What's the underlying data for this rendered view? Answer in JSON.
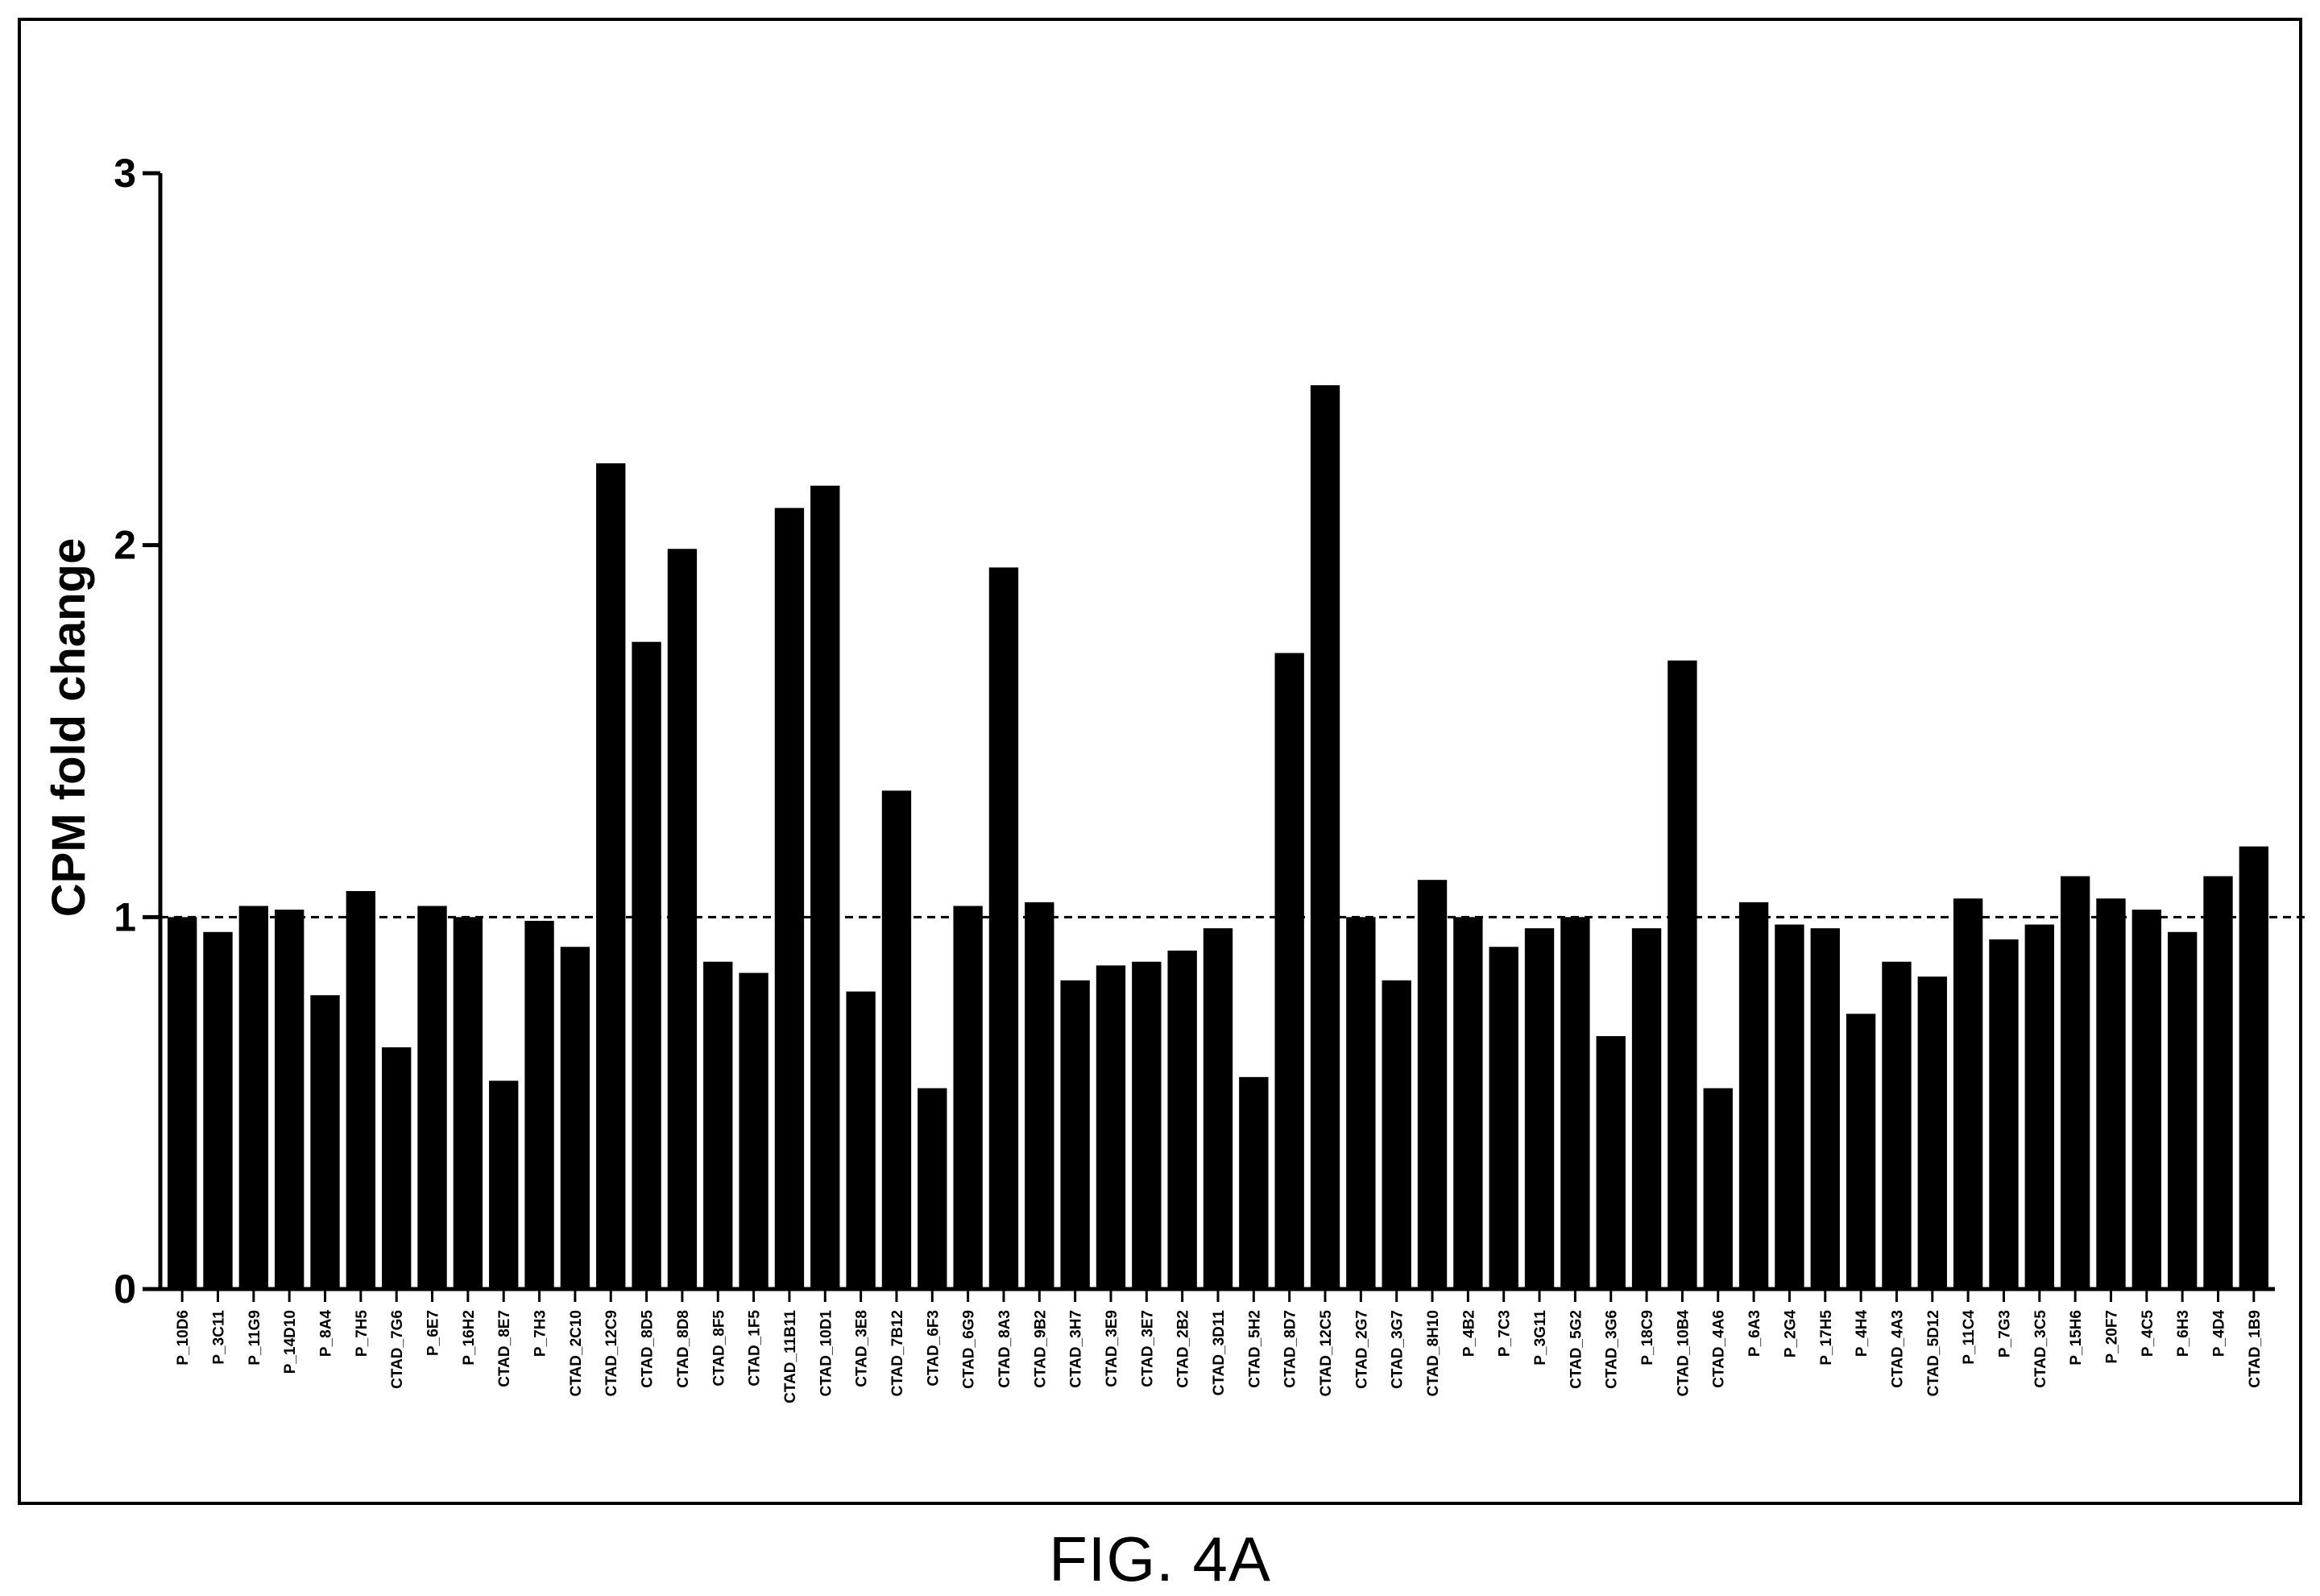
{
  "figure": {
    "caption": "FIG. 4A"
  },
  "colors": {
    "bar": "#000000",
    "axis": "#000000",
    "reference_line": "#000000",
    "background": "#ffffff"
  },
  "chart_data": {
    "type": "bar",
    "title": "",
    "xlabel": "",
    "ylabel": "CPM fold change",
    "ylim": [
      0,
      3
    ],
    "yticks": [
      0,
      1,
      2,
      3
    ],
    "reference_line": 1,
    "grid": false,
    "categories": [
      "P_10D6",
      "P_3C11",
      "P_11G9",
      "P_14D10",
      "P_8A4",
      "P_7H5",
      "CTAD_7G6",
      "P_6E7",
      "P_16H2",
      "CTAD_8E7",
      "P_7H3",
      "CTAD_2C10",
      "CTAD_12C9",
      "CTAD_8D5",
      "CTAD_8D8",
      "CTAD_8F5",
      "CTAD_1F5",
      "CTAD_11B11",
      "CTAD_10D1",
      "CTAD_3E8",
      "CTAD_7B12",
      "CTAD_6F3",
      "CTAD_6G9",
      "CTAD_8A3",
      "CTAD_9B2",
      "CTAD_3H7",
      "CTAD_3E9",
      "CTAD_3E7",
      "CTAD_2B2",
      "CTAD_3D11",
      "CTAD_5H2",
      "CTAD_8D7",
      "CTAD_12C5",
      "CTAD_2G7",
      "CTAD_3G7",
      "CTAD_8H10",
      "P_4B2",
      "P_7C3",
      "P_3G11",
      "CTAD_5G2",
      "CTAD_3G6",
      "P_18C9",
      "CTAD_10B4",
      "CTAD_4A6",
      "P_6A3",
      "P_2G4",
      "P_17H5",
      "P_4H4",
      "CTAD_4A3",
      "CTAD_5D12",
      "P_11C4",
      "P_7G3",
      "CTAD_3C5",
      "P_15H6",
      "P_20F7",
      "P_4C5",
      "P_6H3",
      "P_4D4",
      "CTAD_1B9"
    ],
    "values": [
      1.0,
      0.96,
      1.03,
      1.02,
      0.79,
      1.07,
      0.65,
      1.03,
      1.0,
      0.56,
      0.99,
      0.92,
      2.22,
      1.74,
      1.99,
      0.88,
      0.85,
      2.1,
      2.16,
      0.8,
      1.34,
      0.54,
      1.03,
      1.94,
      1.04,
      0.83,
      0.87,
      0.88,
      0.91,
      0.97,
      0.57,
      1.71,
      2.43,
      1.0,
      0.83,
      1.1,
      1.0,
      0.92,
      0.97,
      1.0,
      0.68,
      0.97,
      1.69,
      0.54,
      1.04,
      0.98,
      0.97,
      0.74,
      0.88,
      0.84,
      1.05,
      0.94,
      0.98,
      1.11,
      1.05,
      1.02,
      0.96,
      1.11,
      1.19
    ]
  }
}
